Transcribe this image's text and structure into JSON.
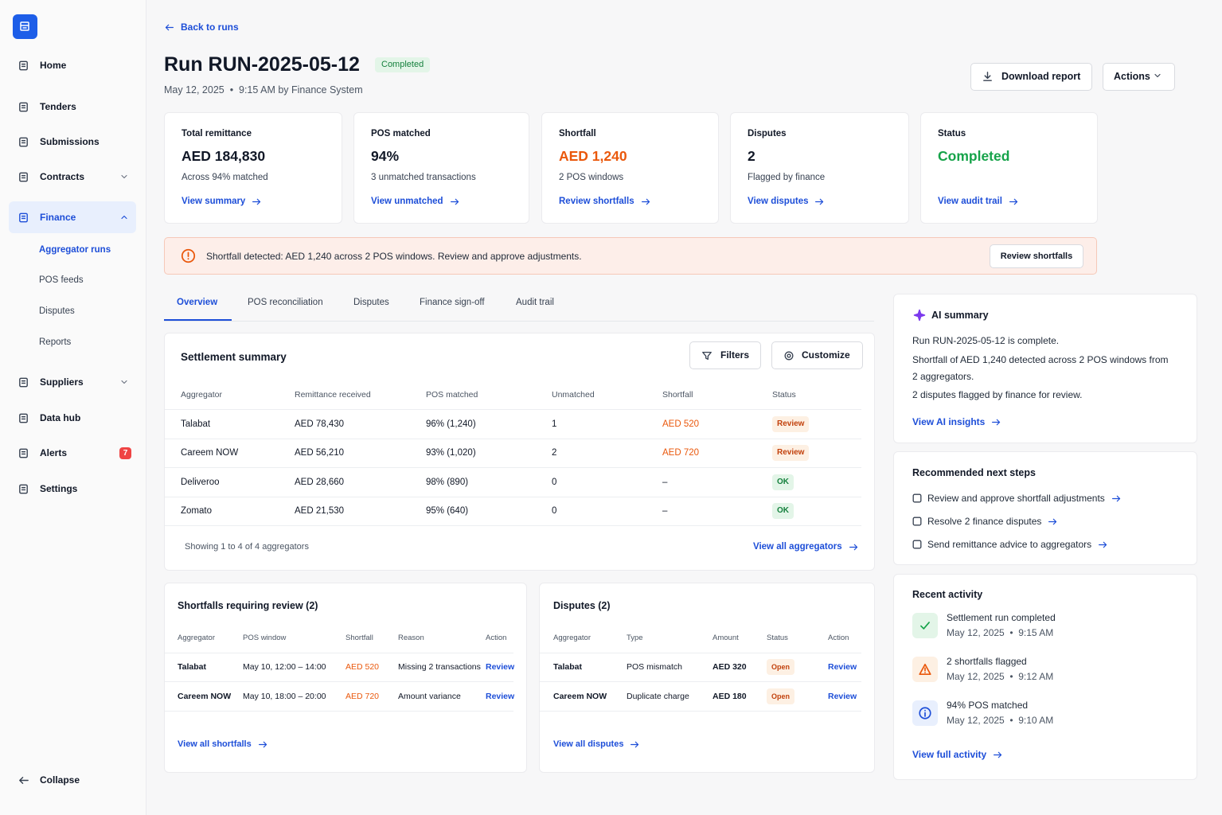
{
  "sidebar": {
    "nav": [
      "Home",
      "Tenders",
      "Submissions",
      "Contracts",
      "Finance",
      "Suppliers",
      "Data hub",
      "Alerts",
      "Settings"
    ],
    "finance_sub": [
      "Aggregator runs",
      "POS feeds",
      "Disputes",
      "Reports"
    ],
    "alerts_badge": 7,
    "collapse": "Collapse"
  },
  "header": {
    "back": "Back to runs",
    "title": "Run RUN-2025-05-12",
    "status": "Completed",
    "meta": "May 12, 2025  •  9:15 AM by Finance System",
    "download": "Download report",
    "actions": "Actions"
  },
  "kpis": [
    {
      "label": "Total remittance",
      "value": "AED 184,830",
      "sub": "Across 94% matched",
      "link": "View summary",
      "color": "#111827"
    },
    {
      "label": "POS matched",
      "value": "94%",
      "sub": "3 unmatched transactions",
      "link": "View unmatched",
      "color": "#111827"
    },
    {
      "label": "Shortfall",
      "value": "AED 1,240",
      "sub": "2 POS windows",
      "link": "Review shortfalls",
      "color": "#ea580c"
    },
    {
      "label": "Disputes",
      "value": "2",
      "sub": "Flagged by finance",
      "link": "View disputes",
      "color": "#111827"
    },
    {
      "label": "Status",
      "value": "Completed",
      "link": "View audit trail",
      "color": "#16a34a"
    }
  ],
  "alert": {
    "text": "Shortfall detected: AED 1,240 across 2 POS windows. Review and approve adjustments.",
    "button": "Review shortfalls"
  },
  "tabs": [
    "Overview",
    "POS reconciliation",
    "Disputes",
    "Finance sign-off",
    "Audit trail"
  ],
  "settlement": {
    "title": "Settlement summary",
    "filters": "Filters",
    "customize": "Customize",
    "columns": [
      "Aggregator",
      "Remittance received",
      "POS matched",
      "Unmatched",
      "Shortfall",
      "Status"
    ],
    "rows": [
      [
        "Talabat",
        "AED 78,430",
        "96% (1,240)",
        "1",
        "AED 520",
        "Review"
      ],
      [
        "Careem NOW",
        "AED 56,210",
        "93% (1,020)",
        "2",
        "AED 720",
        "Review"
      ],
      [
        "Deliveroo",
        "AED 28,660",
        "98% (890)",
        "0",
        "–",
        "OK"
      ],
      [
        "Zomato",
        "AED 21,530",
        "95% (640)",
        "0",
        "–",
        "OK"
      ]
    ],
    "tones": [
      "warn",
      "warn",
      "ok",
      "ok"
    ],
    "footer": "Showing 1 to 4 of 4 aggregators",
    "link": "View all aggregators"
  },
  "shortfalls": {
    "title": "Shortfalls requiring review (2)",
    "columns": [
      "Aggregator",
      "POS window",
      "Shortfall",
      "Reason",
      "Action"
    ],
    "rows": [
      [
        "Talabat",
        "May 10, 12:00 – 14:00",
        "AED 520",
        "Missing 2 transactions",
        "Review"
      ],
      [
        "Careem NOW",
        "May 10, 18:00 – 20:00",
        "AED 720",
        "Amount variance",
        "Review"
      ]
    ],
    "link": "View all shortfalls"
  },
  "disputes": {
    "title": "Disputes (2)",
    "columns": [
      "Aggregator",
      "Type",
      "Amount",
      "Status",
      "Action"
    ],
    "rows": [
      [
        "Talabat",
        "POS mismatch",
        "AED 320",
        "Open",
        "Review"
      ],
      [
        "Careem NOW",
        "Duplicate charge",
        "AED 180",
        "Open",
        "Review"
      ]
    ],
    "link": "View all disputes"
  },
  "ai_summary": {
    "title": "AI summary",
    "lines": [
      "Run RUN-2025-05-12 is complete.",
      "Shortfall of AED 1,240 detected across 2 POS windows from 2 aggregators.",
      "2 disputes flagged by finance for review."
    ],
    "link": "View AI insights"
  },
  "next_steps": {
    "title": "Recommended next steps",
    "items": [
      "Review and approve shortfall adjustments",
      "Resolve 2 finance disputes",
      "Send remittance advice to aggregators"
    ]
  },
  "activity": {
    "title": "Recent activity",
    "items": [
      {
        "title": "Settlement run completed",
        "time": "May 12, 2025  •  9:15 AM"
      },
      {
        "title": "2 shortfalls flagged",
        "time": "May 12, 2025  •  9:12 AM"
      },
      {
        "title": "94% POS matched",
        "time": "May 12, 2025  •  9:10 AM"
      }
    ],
    "link": "View full activity"
  }
}
